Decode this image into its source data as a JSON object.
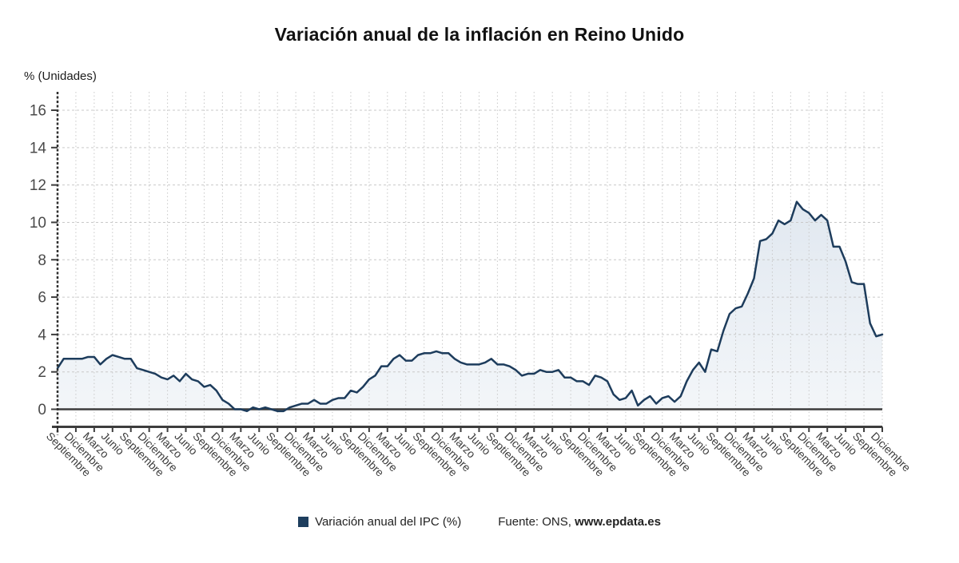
{
  "title": "Variación anual de la inflación en Reino Unido",
  "y_axis_title": "% (Unidades)",
  "legend": {
    "label": "Variación anual del IPC (%)",
    "swatch_color": "#1e3e5e"
  },
  "source": {
    "prefix": "Fuente: ONS, ",
    "url": "www.epdata.es"
  },
  "chart_data": {
    "type": "area",
    "title": "Variación anual de la inflación en Reino Unido",
    "ylabel": "% (Unidades)",
    "xlabel": "",
    "ylim": [
      -1,
      17
    ],
    "yticks": [
      0,
      2,
      4,
      6,
      8,
      10,
      12,
      14,
      16
    ],
    "grid": true,
    "legend_position": "bottom",
    "x_unit": "month",
    "x_ticks_every_n_points": 3,
    "x_tick_labels": [
      "Septiembre",
      "Diciembre",
      "Marzo",
      "Junio",
      "Septiembre",
      "Diciembre",
      "Marzo",
      "Junio",
      "Septiembre",
      "Diciembre",
      "Marzo",
      "Junio",
      "Septiembre",
      "Diciembre",
      "Marzo",
      "Junio",
      "Septiembre",
      "Diciembre",
      "Marzo",
      "Junio",
      "Septiembre",
      "Diciembre",
      "Marzo",
      "Junio",
      "Septiembre",
      "Diciembre",
      "Marzo",
      "Junio",
      "Septiembre",
      "Diciembre",
      "Marzo",
      "Junio",
      "Septiembre",
      "Diciembre",
      "Marzo",
      "Junio",
      "Septiembre",
      "Diciembre",
      "Marzo",
      "Junio",
      "Septiembre",
      "Diciembre",
      "Marzo",
      "Junio",
      "Septiembre",
      "Diciembre"
    ],
    "series": [
      {
        "name": "Variación anual del IPC (%)",
        "color": "#1d3c5c",
        "values": [
          2.2,
          2.7,
          2.7,
          2.7,
          2.7,
          2.8,
          2.8,
          2.4,
          2.7,
          2.9,
          2.8,
          2.7,
          2.7,
          2.2,
          2.1,
          2.0,
          1.9,
          1.7,
          1.6,
          1.8,
          1.5,
          1.9,
          1.6,
          1.5,
          1.2,
          1.3,
          1.0,
          0.5,
          0.3,
          0.0,
          0.0,
          -0.1,
          0.1,
          0.0,
          0.1,
          0.0,
          -0.1,
          -0.1,
          0.1,
          0.2,
          0.3,
          0.3,
          0.5,
          0.3,
          0.3,
          0.5,
          0.6,
          0.6,
          1.0,
          0.9,
          1.2,
          1.6,
          1.8,
          2.3,
          2.3,
          2.7,
          2.9,
          2.6,
          2.6,
          2.9,
          3.0,
          3.0,
          3.1,
          3.0,
          3.0,
          2.7,
          2.5,
          2.4,
          2.4,
          2.4,
          2.5,
          2.7,
          2.4,
          2.4,
          2.3,
          2.1,
          1.8,
          1.9,
          1.9,
          2.1,
          2.0,
          2.0,
          2.1,
          1.7,
          1.7,
          1.5,
          1.5,
          1.3,
          1.8,
          1.7,
          1.5,
          0.8,
          0.5,
          0.6,
          1.0,
          0.2,
          0.5,
          0.7,
          0.3,
          0.6,
          0.7,
          0.4,
          0.7,
          1.5,
          2.1,
          2.5,
          2.0,
          3.2,
          3.1,
          4.2,
          5.1,
          5.4,
          5.5,
          6.2,
          7.0,
          9.0,
          9.1,
          9.4,
          10.1,
          9.9,
          10.1,
          11.1,
          10.7,
          10.5,
          10.1,
          10.4,
          10.1,
          8.7,
          8.7,
          7.9,
          6.8,
          6.7,
          6.7,
          4.6,
          3.9,
          4.0
        ]
      }
    ],
    "colors": {
      "line": "#1d3c5c",
      "fill_top": "#e1e8f0",
      "fill_bottom": "#f3f6f9",
      "grid": "#c9c9c9",
      "axis": "#3d3d3d",
      "tick_label": "#4a4a4a",
      "x_label": "#3d3d3d"
    }
  }
}
